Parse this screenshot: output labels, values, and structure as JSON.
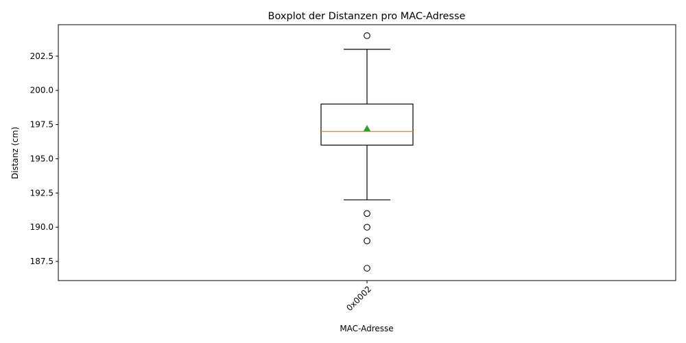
{
  "chart_data": {
    "type": "box",
    "title": "Boxplot der Distanzen pro MAC-Adresse",
    "xlabel": "MAC-Adresse",
    "ylabel": "Distanz (cm)",
    "ylim": [
      186.1,
      204.8
    ],
    "yticks": [
      187.5,
      190.0,
      192.5,
      195.0,
      197.5,
      200.0,
      202.5
    ],
    "ytick_labels": [
      "187.5",
      "190.0",
      "192.5",
      "195.0",
      "197.5",
      "200.0",
      "202.5"
    ],
    "grid": false,
    "categories": [
      "0x0002"
    ],
    "boxes": [
      {
        "category": "0x0002",
        "whisker_low": 192,
        "q1": 196,
        "median": 197,
        "q3": 199,
        "whisker_high": 203,
        "mean": 197.2,
        "outliers": [
          204,
          191,
          190,
          189,
          187
        ]
      }
    ],
    "colors": {
      "box": "#000000",
      "median": "#ff7f0e",
      "mean": "#2ca02c",
      "flier": "#000000"
    }
  }
}
